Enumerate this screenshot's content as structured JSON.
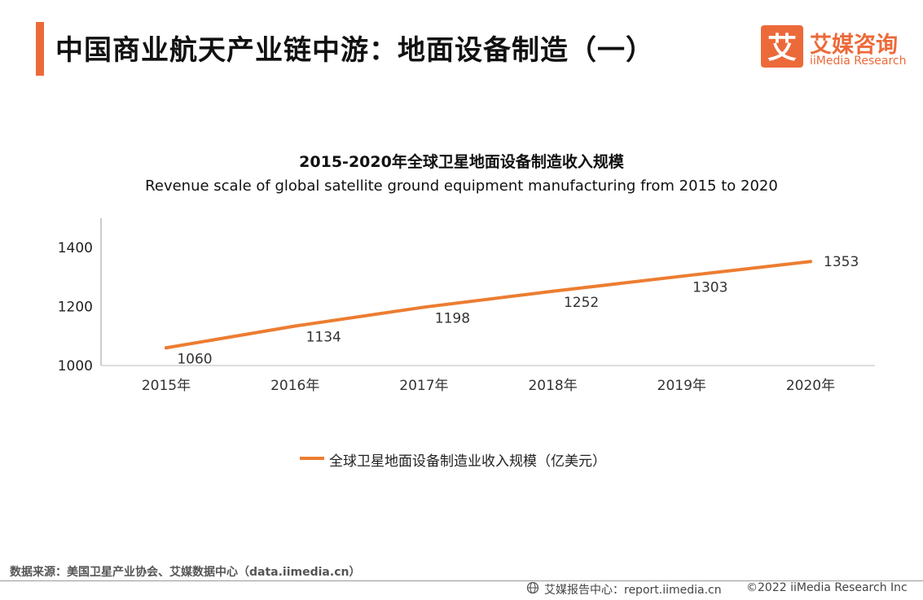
{
  "header": {
    "title": "中国商业航天产业链中游：地面设备制造（一）"
  },
  "logo": {
    "cn": "艾媒咨询",
    "en": "iiMedia Research",
    "mark": "艾"
  },
  "colors": {
    "accent": "#ec6a3a",
    "line": "#ec7d31"
  },
  "chart_data": {
    "type": "line",
    "title": "2015-2020年全球卫星地面设备制造收入规模",
    "subtitle": "Revenue scale of global satellite ground equipment manufacturing  from 2015 to 2020",
    "categories": [
      "2015年",
      "2016年",
      "2017年",
      "2018年",
      "2019年",
      "2020年"
    ],
    "series": [
      {
        "name": "全球卫星地面设备制造业收入规模（亿美元）",
        "values": [
          1060,
          1134,
          1198,
          1252,
          1303,
          1353
        ]
      }
    ],
    "y_ticks": [
      1000,
      1200,
      1400
    ],
    "ylim": [
      1000,
      1500
    ],
    "legend": "bottom"
  },
  "footer": {
    "source": "数据来源：美国卫星产业协会、艾媒数据中心（data.iimedia.cn）",
    "report_label": "艾媒报告中心：report.iimedia.cn",
    "copyright": "©2022  iiMedia Research  Inc",
    "globe_icon": "globe-icon"
  }
}
